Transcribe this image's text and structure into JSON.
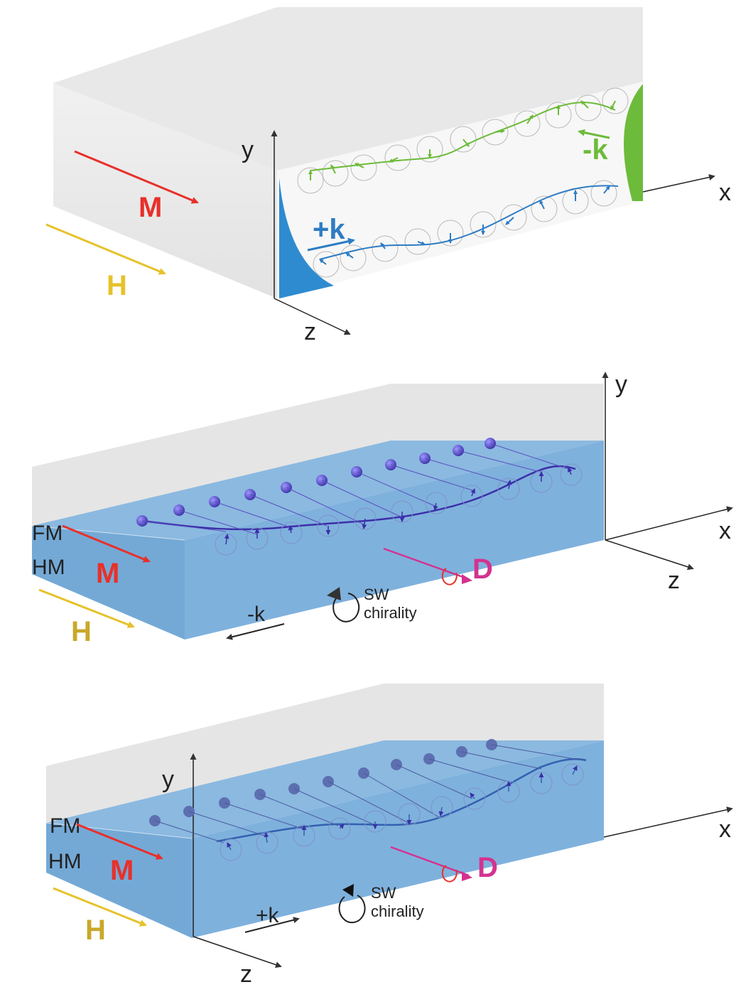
{
  "panels": [
    {
      "id": "top",
      "axes": {
        "x": "x",
        "y": "y",
        "z": "z"
      },
      "labels": {
        "M": "M",
        "H": "H",
        "plus_k": "+k",
        "minus_k": "-k"
      }
    },
    {
      "id": "middle",
      "axes": {
        "x": "x",
        "y": "y",
        "z": "z"
      },
      "labels": {
        "FM": "FM",
        "HM": "HM",
        "M": "M",
        "H": "H",
        "D": "D",
        "k": "-k",
        "sw": "SW",
        "chirality": "chirality"
      }
    },
    {
      "id": "bottom",
      "axes": {
        "x": "x",
        "y": "y",
        "z": "z"
      },
      "labels": {
        "FM": "FM",
        "HM": "HM",
        "M": "M",
        "H": "H",
        "D": "D",
        "k": "+k",
        "sw": "SW",
        "chirality": "chirality"
      }
    }
  ],
  "colors": {
    "magnetization": "#e8302a",
    "field": "#e6c22b",
    "dmi": "#d4328f",
    "green_wave": "#6dbb3a",
    "blue_wave": "#2e7cc4",
    "hm_layer": "#6fa8d6",
    "spin_purple": "#5a4fc0"
  }
}
